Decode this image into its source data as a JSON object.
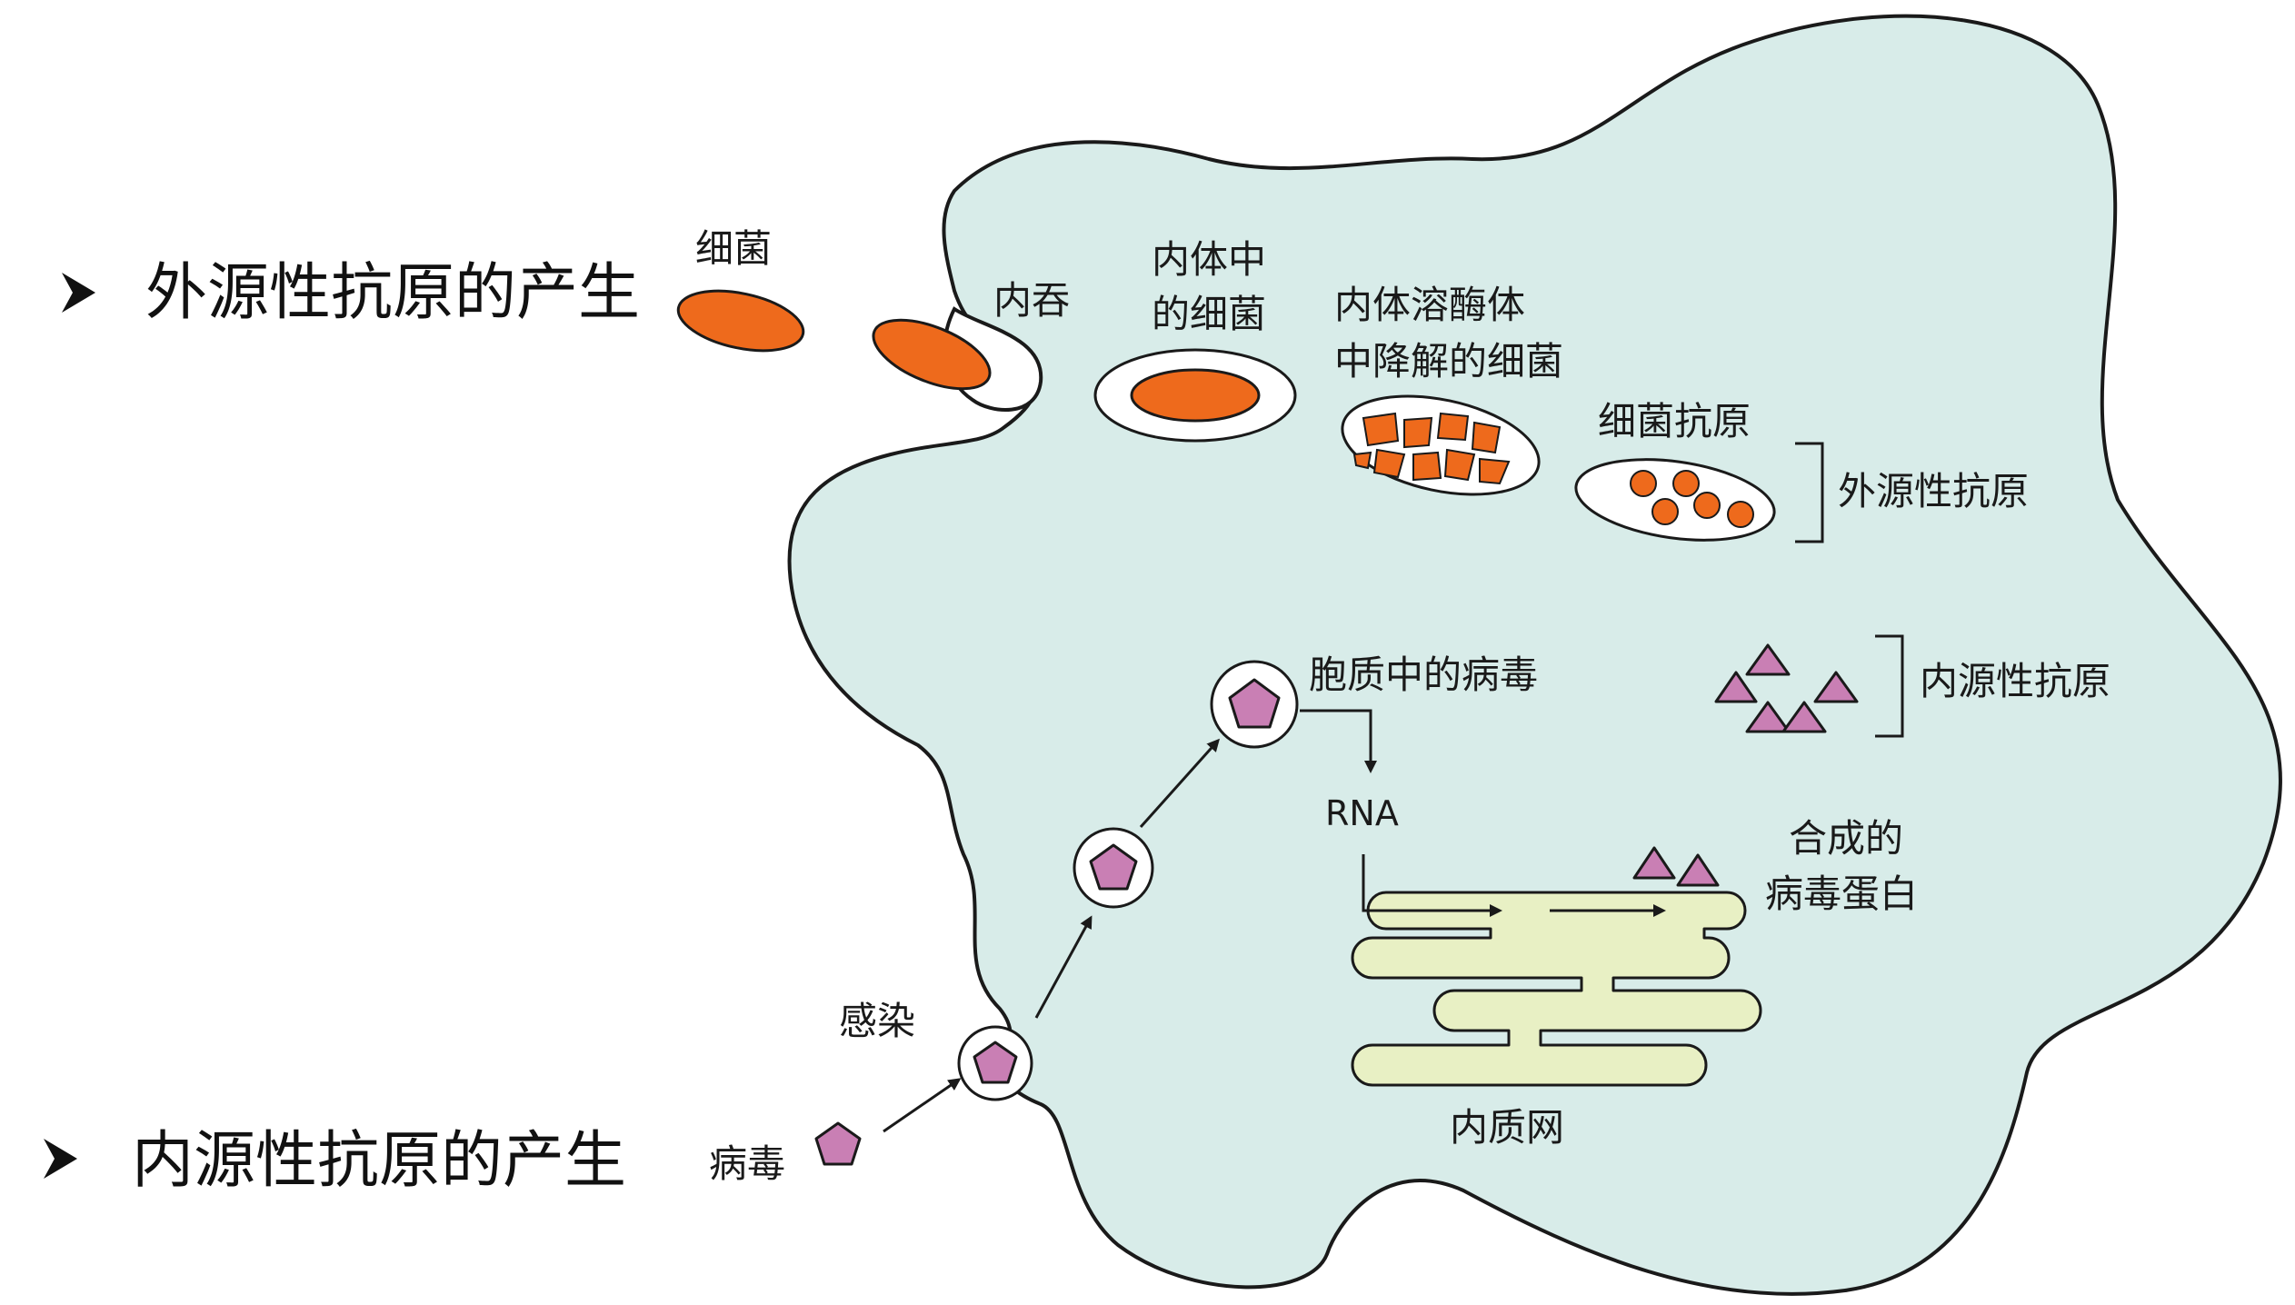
{
  "headings": {
    "exogenous": "外源性抗原的产生",
    "endogenous": "内源性抗原的产生",
    "bullet_icon": "arrowhead-bullet-icon"
  },
  "labels": {
    "bacteria": "细菌",
    "endocytosis": "内吞",
    "bacteria_in_endosome_line1": "内体中",
    "bacteria_in_endosome_line2": "的细菌",
    "degraded_line1": "内体溶酶体",
    "degraded_line2": "中降解的细菌",
    "bacterial_antigen": "细菌抗原",
    "exogenous_antigen": "外源性抗原",
    "virus_in_cytoplasm": "胞质中的病毒",
    "endogenous_antigen": "内源性抗原",
    "rna": "RNA",
    "synthesized_line1": "合成的",
    "synthesized_line2": "病毒蛋白",
    "infection": "感染",
    "virus": "病毒",
    "er": "内质网"
  },
  "colors": {
    "cell_fill": "#d8ece9",
    "cell_stroke": "#1a1a1a",
    "bacteria": "#ee6a1c",
    "virus": "#c97fb4",
    "er_fill": "#e8f0c4",
    "vesicle_fill": "#ffffff"
  }
}
